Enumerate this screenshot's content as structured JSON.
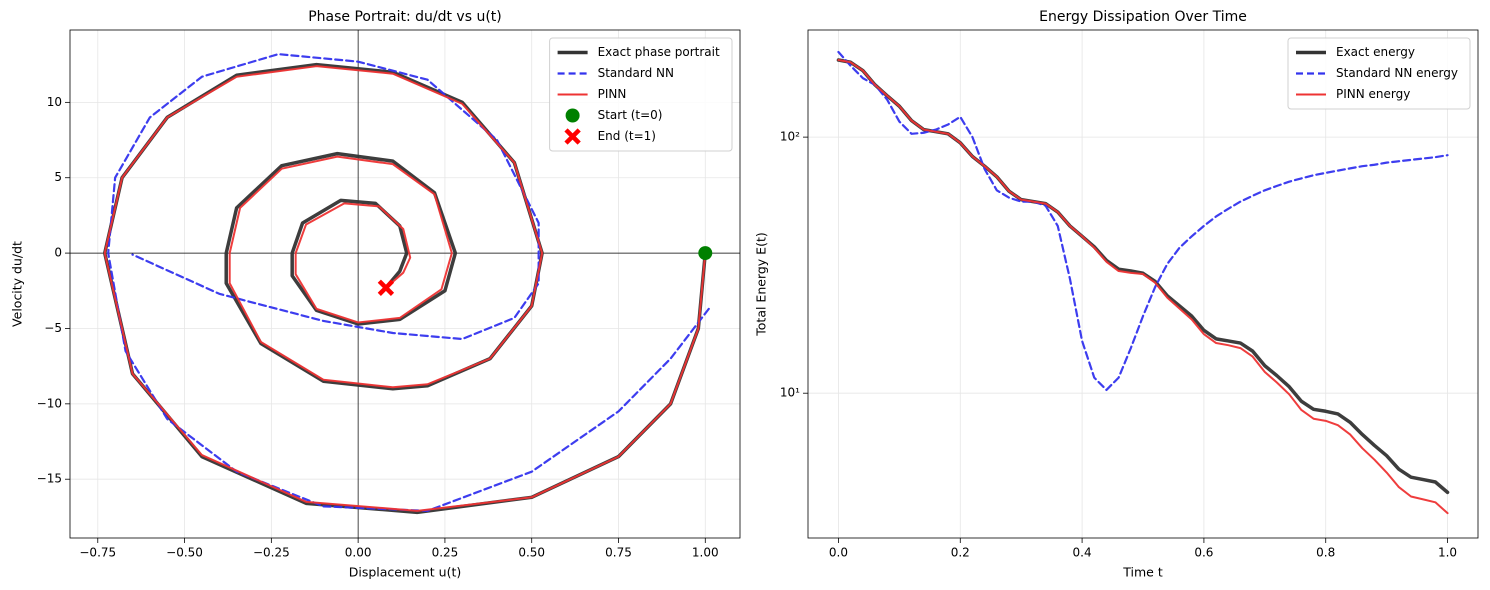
{
  "chart_data": [
    {
      "type": "line",
      "title": "Phase Portrait: du/dt vs u(t)",
      "xlabel": "Displacement u(t)",
      "ylabel": "Velocity du/dt",
      "xlim": [
        -0.83,
        1.1
      ],
      "ylim": [
        -18.9,
        14.8
      ],
      "xticks": [
        {
          "value": -0.75,
          "label": "−0.75"
        },
        {
          "value": -0.5,
          "label": "−0.50"
        },
        {
          "value": -0.25,
          "label": "−0.25"
        },
        {
          "value": 0,
          "label": "0.00"
        },
        {
          "value": 0.25,
          "label": "0.25"
        },
        {
          "value": 0.5,
          "label": "0.50"
        },
        {
          "value": 0.75,
          "label": "0.75"
        },
        {
          "value": 1,
          "label": "1.00"
        }
      ],
      "yticks": [
        {
          "value": -15,
          "label": "−15"
        },
        {
          "value": -10,
          "label": "−10"
        },
        {
          "value": -5,
          "label": "−5"
        },
        0,
        5,
        10
      ],
      "grid": true,
      "zero_lines": true,
      "legend": "upper right",
      "series": [
        {
          "name": "Exact phase portrait",
          "color": "#333333",
          "width": 3.5,
          "dash": false,
          "x": [
            1,
            0.98,
            0.9,
            0.75,
            0.5,
            0.17,
            -0.15,
            -0.45,
            -0.65,
            -0.73,
            -0.68,
            -0.55,
            -0.35,
            -0.12,
            0.1,
            0.3,
            0.45,
            0.53,
            0.5,
            0.38,
            0.2,
            0.1,
            -0.1,
            -0.28,
            -0.38,
            -0.38,
            -0.35,
            -0.22,
            -0.06,
            0.1,
            0.22,
            0.28,
            0.25,
            0.12,
            0,
            -0.12,
            -0.19,
            -0.19,
            -0.16,
            -0.05,
            0.05,
            0.12,
            0.14,
            0.12,
            0.08
          ],
          "values": [
            0,
            -5,
            -10,
            -13.5,
            -16.2,
            -17.2,
            -16.6,
            -13.5,
            -8,
            0,
            5,
            9,
            11.8,
            12.5,
            12,
            10,
            6,
            0,
            -3.5,
            -7,
            -8.8,
            -9,
            -8.5,
            -6,
            -2,
            0,
            3,
            5.8,
            6.6,
            6.1,
            4,
            0,
            -2.5,
            -4.4,
            -4.7,
            -3.8,
            -1.5,
            0,
            2,
            3.5,
            3.3,
            1.8,
            0,
            -1.2,
            -2.3
          ]
        },
        {
          "name": "Standard NN",
          "color": "#3333ee",
          "width": 2.2,
          "dash": true,
          "x": [
            1.01,
            0.9,
            0.75,
            0.5,
            0.2,
            -0.1,
            -0.35,
            -0.55,
            -0.67,
            -0.72,
            -0.7,
            -0.6,
            -0.45,
            -0.23,
            0,
            0.2,
            0.4,
            0.52,
            0.52,
            0.45,
            0.3,
            0.1,
            -0.1,
            -0.4,
            -0.65
          ],
          "values": [
            -3.7,
            -7,
            -10.5,
            -14.5,
            -17.1,
            -16.8,
            -14.5,
            -11,
            -6.5,
            0,
            5,
            9,
            11.7,
            13.2,
            12.7,
            11.5,
            7.5,
            2,
            -2,
            -4.3,
            -5.7,
            -5.3,
            -4.5,
            -2.7,
            -0.1
          ]
        },
        {
          "name": "PINN",
          "color": "#ee3333",
          "width": 2,
          "dash": false,
          "x": [
            1,
            0.98,
            0.9,
            0.75,
            0.5,
            0.17,
            -0.15,
            -0.45,
            -0.65,
            -0.73,
            -0.68,
            -0.55,
            -0.35,
            -0.12,
            0.1,
            0.3,
            0.45,
            0.53,
            0.5,
            0.38,
            0.2,
            0.1,
            -0.1,
            -0.28,
            -0.37,
            -0.37,
            -0.34,
            -0.22,
            -0.06,
            0.1,
            0.22,
            0.27,
            0.24,
            0.12,
            0,
            -0.12,
            -0.18,
            -0.18,
            -0.15,
            -0.04,
            0.06,
            0.13,
            0.15,
            0.13,
            0.08
          ],
          "values": [
            0,
            -5,
            -10,
            -13.5,
            -16.2,
            -17.1,
            -16.5,
            -13.4,
            -8,
            0,
            5,
            9,
            11.7,
            12.4,
            11.9,
            9.9,
            6,
            0,
            -3.5,
            -7,
            -8.7,
            -8.9,
            -8.4,
            -5.9,
            -2,
            0,
            3,
            5.6,
            6.4,
            5.9,
            3.9,
            0,
            -2.4,
            -4.3,
            -4.6,
            -3.7,
            -1.4,
            0,
            1.9,
            3.3,
            3.1,
            1.6,
            -0.3,
            -1.3,
            -2.3
          ]
        }
      ],
      "markers": [
        {
          "name": "Start (t=0)",
          "x": 1,
          "y": 0,
          "color": "#008000",
          "shape": "circle"
        },
        {
          "name": "End (t=1)",
          "x": 0.08,
          "y": -2.3,
          "color": "#ff0000",
          "shape": "x"
        }
      ]
    },
    {
      "type": "line",
      "title": "Energy Dissipation Over Time",
      "xlabel": "Time t",
      "ylabel": "Total Energy E(t)",
      "yscale": "log",
      "xlim": [
        -0.05,
        1.05
      ],
      "ylim": [
        2.72,
        262
      ],
      "xticks": [
        {
          "value": 0,
          "label": "0.0"
        },
        {
          "value": 0.2,
          "label": "0.2"
        },
        {
          "value": 0.4,
          "label": "0.4"
        },
        {
          "value": 0.6,
          "label": "0.6"
        },
        {
          "value": 0.8,
          "label": "0.8"
        },
        {
          "value": 1,
          "label": "1.0"
        }
      ],
      "yticks": [
        {
          "value": 10,
          "label": "10¹"
        },
        {
          "value": 100,
          "label": "10²"
        }
      ],
      "grid": true,
      "legend": "upper right",
      "x": [
        0,
        0.02,
        0.04,
        0.06,
        0.08,
        0.1,
        0.12,
        0.14,
        0.16,
        0.18,
        0.2,
        0.22,
        0.24,
        0.26,
        0.28,
        0.3,
        0.32,
        0.34,
        0.36,
        0.38,
        0.4,
        0.42,
        0.44,
        0.46,
        0.48,
        0.5,
        0.52,
        0.54,
        0.56,
        0.58,
        0.6,
        0.62,
        0.64,
        0.66,
        0.68,
        0.7,
        0.72,
        0.74,
        0.76,
        0.78,
        0.8,
        0.82,
        0.84,
        0.86,
        0.88,
        0.9,
        0.92,
        0.94,
        0.96,
        0.98,
        1
      ],
      "series": [
        {
          "name": "Exact energy",
          "color": "#333333",
          "width": 3.5,
          "dash": false,
          "values": [
            200,
            196,
            182,
            160,
            145,
            132,
            116,
            107,
            105,
            103,
            95,
            84,
            77,
            70,
            61.5,
            57,
            56,
            55,
            51,
            45,
            41,
            37.3,
            33,
            30.5,
            30,
            29.4,
            27.3,
            24,
            21.9,
            20,
            17.6,
            16.3,
            16,
            15.7,
            14.6,
            12.8,
            11.7,
            10.6,
            9.3,
            8.65,
            8.5,
            8.3,
            7.7,
            6.9,
            6.25,
            5.7,
            5.05,
            4.7,
            4.6,
            4.5,
            4.1
          ]
        },
        {
          "name": "Standard NN energy",
          "color": "#3333ee",
          "width": 2.2,
          "dash": true,
          "values": [
            215,
            190,
            170,
            160,
            140,
            115,
            103,
            104,
            107,
            112,
            120,
            100,
            75,
            62,
            58,
            56,
            56,
            54,
            45,
            28,
            16,
            11.5,
            10.3,
            11.5,
            15,
            20,
            26,
            32,
            37,
            41,
            45,
            49,
            52.5,
            56,
            59,
            62,
            64.5,
            67,
            69,
            71,
            72.5,
            74,
            75.5,
            77,
            78,
            79.5,
            80.5,
            81.5,
            82.5,
            83.5,
            85
          ]
        },
        {
          "name": "PINN energy",
          "color": "#ee3333",
          "width": 2,
          "dash": false,
          "values": [
            200,
            196,
            182,
            160,
            145,
            132,
            116,
            107,
            105,
            103,
            95,
            84,
            77,
            70,
            61.5,
            57,
            56,
            55,
            51,
            45,
            41,
            37,
            32.6,
            30,
            29.5,
            29.2,
            27,
            23.6,
            21.4,
            19.4,
            17,
            15.7,
            15.4,
            15,
            13.9,
            12.1,
            11,
            9.9,
            8.6,
            7.95,
            7.8,
            7.5,
            6.9,
            6.1,
            5.5,
            4.9,
            4.3,
            3.95,
            3.85,
            3.75,
            3.4
          ]
        }
      ]
    }
  ]
}
